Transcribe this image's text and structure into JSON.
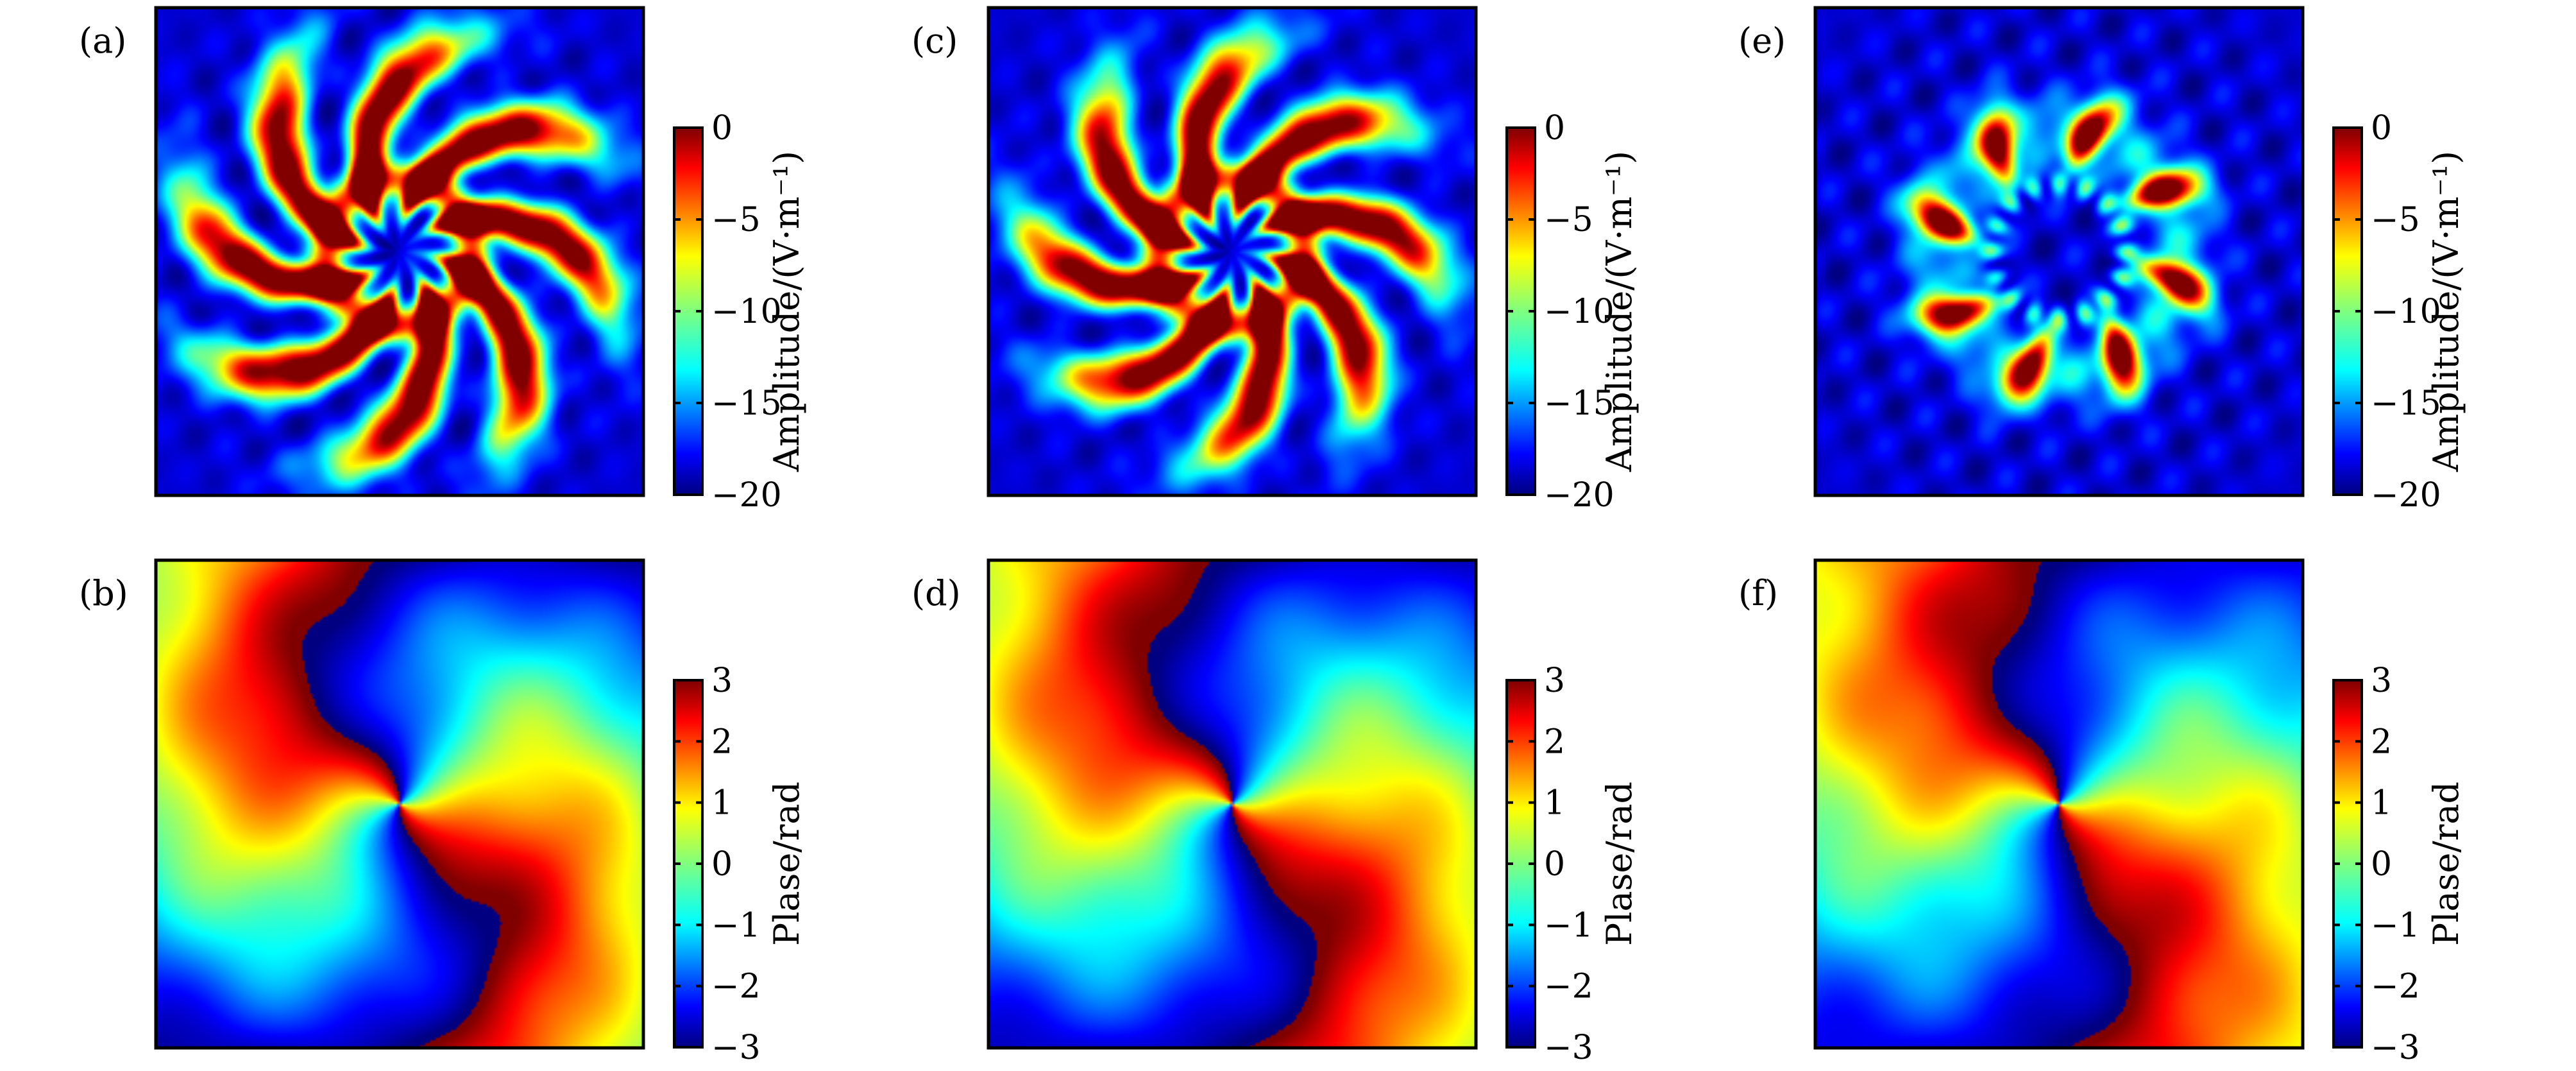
{
  "chart_data": [
    {
      "type": "heatmap",
      "panel_label": "(a)",
      "row": 0,
      "col": 0,
      "field": "amplitude",
      "pattern": {
        "kind": "spiral-arms",
        "arms": 8,
        "twist": 1.1,
        "inner_radius": 0.16,
        "outer_radius": 0.9,
        "noise": 0.35
      },
      "colorbar": {
        "label": "Amplitude/(V·m⁻¹)",
        "ticks": [
          0,
          -5,
          -10,
          -15,
          -20
        ],
        "range": [
          -20,
          0
        ]
      }
    },
    {
      "type": "heatmap",
      "panel_label": "(b)",
      "row": 1,
      "col": 0,
      "field": "phase",
      "pattern": {
        "kind": "vortex",
        "charge": 2,
        "twist": 1.4,
        "noise": 0.25
      },
      "colorbar": {
        "label": "Plase/rad",
        "ticks": [
          3,
          2,
          1,
          0,
          -1,
          -2,
          -3
        ],
        "range": [
          -3,
          3
        ]
      }
    },
    {
      "type": "heatmap",
      "panel_label": "(c)",
      "row": 0,
      "col": 1,
      "field": "amplitude",
      "pattern": {
        "kind": "spiral-arms",
        "arms": 8,
        "twist": 1.0,
        "inner_radius": 0.15,
        "outer_radius": 0.85,
        "noise": 0.3
      },
      "colorbar": {
        "label": "Amplitude/(V·m⁻¹)",
        "ticks": [
          0,
          -5,
          -10,
          -15,
          -20
        ],
        "range": [
          -20,
          0
        ]
      }
    },
    {
      "type": "heatmap",
      "panel_label": "(d)",
      "row": 1,
      "col": 1,
      "field": "phase",
      "pattern": {
        "kind": "vortex",
        "charge": 2,
        "twist": 1.2,
        "noise": 0.25
      },
      "colorbar": {
        "label": "Plase/rad",
        "ticks": [
          3,
          2,
          1,
          0,
          -1,
          -2,
          -3
        ],
        "range": [
          -3,
          3
        ]
      }
    },
    {
      "type": "heatmap",
      "panel_label": "(e)",
      "row": 0,
      "col": 2,
      "field": "amplitude",
      "pattern": {
        "kind": "lobes",
        "arms": 8,
        "twist": 0.5,
        "inner_radius": 0.22,
        "outer_radius": 0.62,
        "noise": 0.4
      },
      "colorbar": {
        "label": "Amplitude/(V·m⁻¹)",
        "ticks": [
          0,
          -5,
          -10,
          -15,
          -20
        ],
        "range": [
          -20,
          0
        ]
      }
    },
    {
      "type": "heatmap",
      "panel_label": "(f)",
      "row": 1,
      "col": 2,
      "field": "phase",
      "pattern": {
        "kind": "vortex",
        "charge": 2,
        "twist": 0.9,
        "noise": 0.3
      },
      "colorbar": {
        "label": "Plase/rad",
        "ticks": [
          3,
          2,
          1,
          0,
          -1,
          -2,
          -3
        ],
        "range": [
          -3,
          3
        ]
      }
    }
  ]
}
